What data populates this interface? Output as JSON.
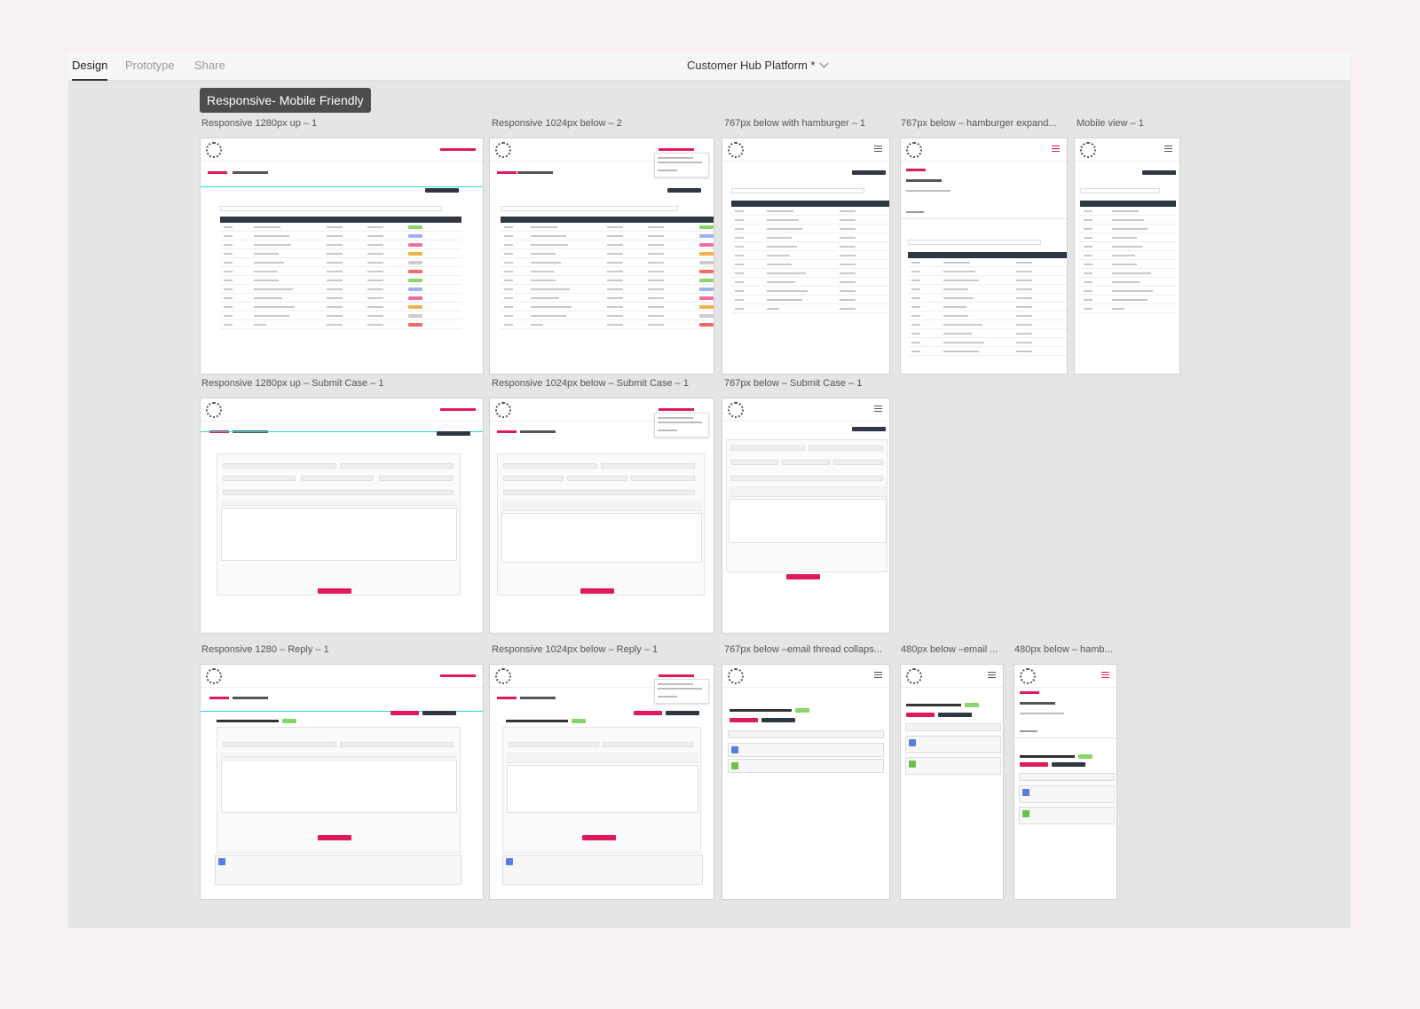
{
  "toolbar": {
    "tabs": [
      {
        "label": "Design"
      },
      {
        "label": "Prototype"
      },
      {
        "label": "Share"
      }
    ],
    "document_title": "Customer Hub Platform *"
  },
  "section_label": "Responsive- Mobile Friendly",
  "frames": [
    {
      "label": "Responsive 1280px up – 1"
    },
    {
      "label": "Responsive 1024px below – 2"
    },
    {
      "label": "767px below with hamburger – 1"
    },
    {
      "label": "767px below – hamburger expand..."
    },
    {
      "label": "Mobile view – 1"
    },
    {
      "label": "Responsive 1280px up – Submit Case – 1"
    },
    {
      "label": "Responsive 1024px below – Submit Case – 1"
    },
    {
      "label": "767px below – Submit Case – 1"
    },
    {
      "label": "Responsive 1280 – Reply – 1"
    },
    {
      "label": "Responsive 1024px below – Reply – 1"
    },
    {
      "label": "767px below –email thread collaps..."
    },
    {
      "label": "480px below –email ..."
    },
    {
      "label": "480px below – hamb..."
    }
  ],
  "colors": {
    "accent": "#e0185c",
    "dark": "#2f3742",
    "highlight": "#2ad4e6"
  }
}
